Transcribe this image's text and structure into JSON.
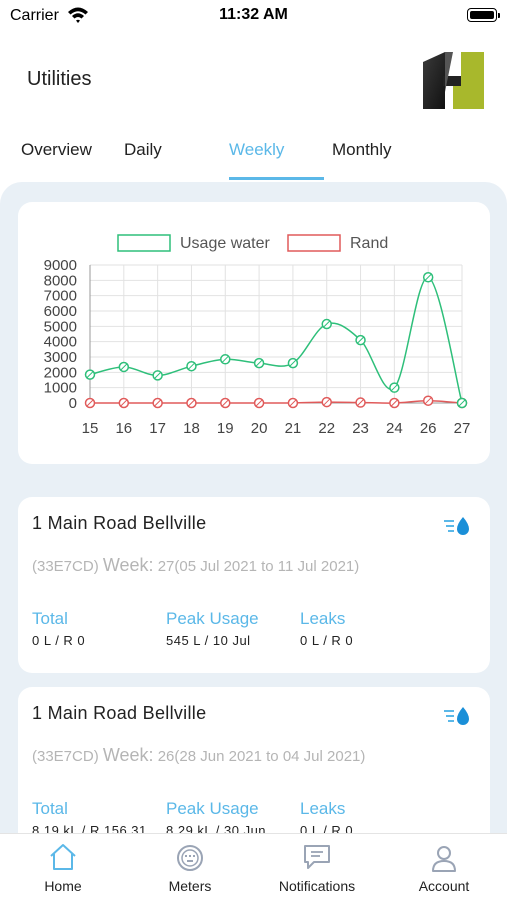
{
  "status_bar": {
    "carrier": "Carrier",
    "time": "11:32 AM"
  },
  "header": {
    "title": "Utilities"
  },
  "tabs": [
    {
      "label": "Overview",
      "active": false
    },
    {
      "label": "Daily",
      "active": false
    },
    {
      "label": "Weekly",
      "active": true
    },
    {
      "label": "Monthly",
      "active": false
    }
  ],
  "chart_data": {
    "type": "line",
    "categories": [
      "15",
      "16",
      "17",
      "18",
      "19",
      "20",
      "21",
      "22",
      "23",
      "24",
      "26",
      "27"
    ],
    "series": [
      {
        "name": "Usage water",
        "color": "#2ebf7a",
        "values": [
          1850,
          2350,
          1800,
          2400,
          2850,
          2600,
          2600,
          5150,
          4100,
          1000,
          8200,
          0
        ]
      },
      {
        "name": "Rand",
        "color": "#e05a5a",
        "values": [
          0,
          0,
          0,
          0,
          0,
          0,
          0,
          60,
          30,
          0,
          150,
          0
        ]
      }
    ],
    "yticks": [
      0,
      1000,
      2000,
      3000,
      4000,
      5000,
      6000,
      7000,
      8000,
      9000
    ],
    "ylim": [
      0,
      9000
    ],
    "grid": true,
    "legend": "top"
  },
  "meters": [
    {
      "title": "1 Main Road Bellville",
      "code": "(33E7CD)",
      "week_label": "Week:",
      "week_value": "27(05 Jul 2021 to 11 Jul 2021)",
      "total_label": "Total",
      "total_value": "0 L / R 0",
      "peak_label": "Peak Usage",
      "peak_value": "545 L / 10 Jul",
      "leaks_label": "Leaks",
      "leaks_value": "0 L / R 0"
    },
    {
      "title": "1 Main Road Bellville",
      "code": "(33E7CD)",
      "week_label": "Week:",
      "week_value": "26(28 Jun 2021 to 04 Jul 2021)",
      "total_label": "Total",
      "total_value": "8.19 kL / R 156.31",
      "peak_label": "Peak Usage",
      "peak_value": "8.29 kL / 30 Jun",
      "leaks_label": "Leaks",
      "leaks_value": "0 L / R 0"
    }
  ],
  "nav": [
    {
      "label": "Home",
      "icon": "home-icon"
    },
    {
      "label": "Meters",
      "icon": "meter-icon"
    },
    {
      "label": "Notifications",
      "icon": "chat-icon"
    },
    {
      "label": "Account",
      "icon": "person-icon"
    }
  ],
  "colors": {
    "accent": "#5bb8e8",
    "water": "#2ebf7a",
    "rand": "#e05a5a",
    "background": "#e9f0f6"
  }
}
